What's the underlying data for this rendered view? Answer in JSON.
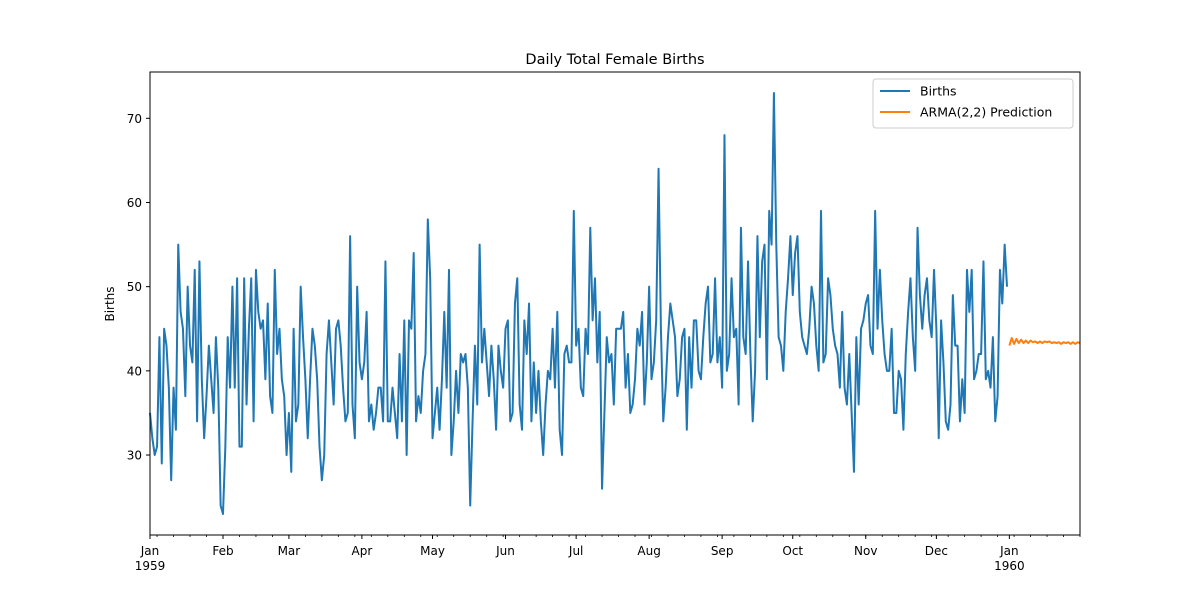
{
  "chart_data": {
    "type": "line",
    "title": "Daily Total Female Births",
    "xlabel": "",
    "ylabel": "Births",
    "xlim": [
      "1959-01-01",
      "1960-01-31"
    ],
    "ylim": [
      20.5,
      75.5
    ],
    "grid": false,
    "legend_position": "top-right",
    "y_ticks": [
      30,
      40,
      50,
      60,
      70
    ],
    "x_ticks": [
      {
        "date": "1959-01-01",
        "label": "Jan",
        "sublabel": "1959"
      },
      {
        "date": "1959-02-01",
        "label": "Feb",
        "sublabel": ""
      },
      {
        "date": "1959-03-01",
        "label": "Mar",
        "sublabel": ""
      },
      {
        "date": "1959-04-01",
        "label": "Apr",
        "sublabel": ""
      },
      {
        "date": "1959-05-01",
        "label": "May",
        "sublabel": ""
      },
      {
        "date": "1959-06-01",
        "label": "Jun",
        "sublabel": ""
      },
      {
        "date": "1959-07-01",
        "label": "Jul",
        "sublabel": ""
      },
      {
        "date": "1959-08-01",
        "label": "Aug",
        "sublabel": ""
      },
      {
        "date": "1959-09-01",
        "label": "Sep",
        "sublabel": ""
      },
      {
        "date": "1959-10-01",
        "label": "Oct",
        "sublabel": ""
      },
      {
        "date": "1959-11-01",
        "label": "Nov",
        "sublabel": ""
      },
      {
        "date": "1959-12-01",
        "label": "Dec",
        "sublabel": ""
      },
      {
        "date": "1960-01-01",
        "label": "Jan",
        "sublabel": "1960"
      }
    ],
    "series": [
      {
        "name": "Births",
        "color": "#1f77b4",
        "start_date": "1959-01-01",
        "values": [
          35,
          32,
          30,
          31,
          44,
          29,
          45,
          43,
          38,
          27,
          38,
          33,
          55,
          47,
          45,
          37,
          50,
          43,
          41,
          52,
          34,
          53,
          39,
          32,
          37,
          43,
          39,
          35,
          44,
          38,
          24,
          23,
          31,
          44,
          38,
          50,
          38,
          51,
          31,
          31,
          51,
          36,
          45,
          51,
          34,
          52,
          47,
          45,
          46,
          39,
          48,
          37,
          35,
          52,
          42,
          45,
          39,
          37,
          30,
          35,
          28,
          45,
          34,
          36,
          50,
          44,
          39,
          32,
          39,
          45,
          43,
          39,
          31,
          27,
          30,
          42,
          46,
          41,
          36,
          45,
          46,
          43,
          38,
          34,
          35,
          56,
          36,
          32,
          50,
          41,
          39,
          41,
          47,
          34,
          36,
          33,
          35,
          38,
          38,
          34,
          53,
          34,
          34,
          38,
          35,
          32,
          42,
          34,
          46,
          30,
          46,
          45,
          54,
          34,
          37,
          35,
          40,
          42,
          58,
          51,
          32,
          35,
          38,
          33,
          39,
          47,
          38,
          52,
          30,
          34,
          40,
          35,
          42,
          41,
          42,
          38,
          24,
          34,
          43,
          36,
          55,
          41,
          45,
          41,
          37,
          43,
          39,
          33,
          43,
          40,
          38,
          45,
          46,
          34,
          35,
          48,
          51,
          36,
          33,
          46,
          42,
          48,
          34,
          41,
          35,
          40,
          34,
          30,
          36,
          40,
          39,
          45,
          38,
          47,
          33,
          30,
          42,
          43,
          41,
          41,
          59,
          43,
          45,
          38,
          37,
          45,
          42,
          57,
          46,
          51,
          41,
          47,
          26,
          35,
          44,
          41,
          42,
          36,
          45,
          45,
          45,
          47,
          38,
          42,
          35,
          36,
          39,
          45,
          43,
          47,
          36,
          41,
          50,
          39,
          41,
          46,
          64,
          45,
          34,
          38,
          44,
          48,
          46,
          44,
          37,
          39,
          44,
          45,
          33,
          44,
          38,
          46,
          46,
          40,
          39,
          44,
          48,
          50,
          41,
          42,
          51,
          41,
          44,
          38,
          68,
          40,
          42,
          51,
          44,
          45,
          36,
          57,
          44,
          42,
          53,
          42,
          34,
          40,
          56,
          44,
          53,
          55,
          39,
          59,
          55,
          73,
          55,
          44,
          43,
          40,
          47,
          51,
          56,
          49,
          54,
          56,
          47,
          44,
          43,
          42,
          45,
          50,
          48,
          43,
          40,
          59,
          41,
          42,
          51,
          49,
          45,
          43,
          42,
          38,
          47,
          38,
          36,
          42,
          35,
          28,
          44,
          36,
          45,
          46,
          48,
          49,
          43,
          42,
          59,
          45,
          52,
          46,
          42,
          40,
          40,
          45,
          35,
          35,
          40,
          39,
          33,
          42,
          47,
          51,
          44,
          40,
          57,
          49,
          45,
          49,
          51,
          46,
          44,
          52,
          45,
          32,
          46,
          41,
          34,
          33,
          36,
          49,
          43,
          43,
          34,
          39,
          35,
          52,
          47,
          52,
          39,
          40,
          42,
          42,
          53,
          39,
          40,
          38,
          44,
          34,
          37,
          52,
          48,
          55,
          50
        ]
      },
      {
        "name": "ARMA(2,2) Prediction",
        "color": "#ff7f0e",
        "start_date": "1960-01-01",
        "values": [
          43.0,
          43.9,
          43.2,
          43.8,
          43.3,
          43.7,
          43.3,
          43.6,
          43.3,
          43.6,
          43.4,
          43.5,
          43.3,
          43.5,
          43.3,
          43.5,
          43.4,
          43.5,
          43.3,
          43.4,
          43.3,
          43.4,
          43.2,
          43.4,
          43.3,
          43.4,
          43.2,
          43.4,
          43.2,
          43.4,
          43.3
        ]
      }
    ]
  }
}
